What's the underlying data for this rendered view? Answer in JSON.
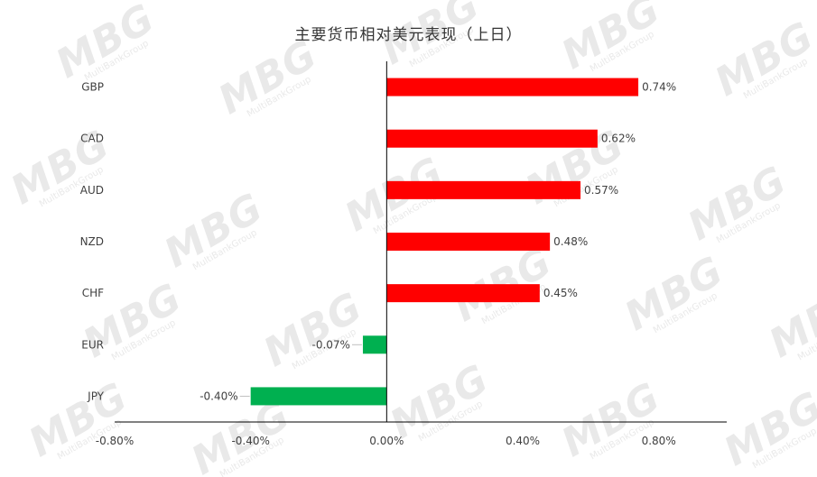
{
  "watermark": {
    "text": "MBG",
    "subtext": "MultiBankGroup"
  },
  "chart_data": {
    "type": "bar",
    "orientation": "horizontal",
    "title": "主要货币相对美元表现（上日）",
    "categories": [
      "GBP",
      "CAD",
      "AUD",
      "NZD",
      "CHF",
      "EUR",
      "JPY"
    ],
    "values": [
      0.74,
      0.62,
      0.57,
      0.48,
      0.45,
      -0.07,
      -0.4
    ],
    "value_labels": [
      "0.74%",
      "0.62%",
      "0.57%",
      "0.48%",
      "0.45%",
      "-0.07%",
      "-0.40%"
    ],
    "unit": "%",
    "xlim": [
      -0.8,
      1.0
    ],
    "x_ticks": [
      -0.8,
      -0.4,
      0.0,
      0.4,
      0.8
    ],
    "x_tick_labels": [
      "-0.80%",
      "-0.40%",
      "0.00%",
      "0.40%",
      "0.80%"
    ],
    "colors": {
      "positive": "#ff0000",
      "negative": "#00b050",
      "axis": "#000000",
      "text": "#404040"
    },
    "grid": false,
    "legend": "none"
  }
}
